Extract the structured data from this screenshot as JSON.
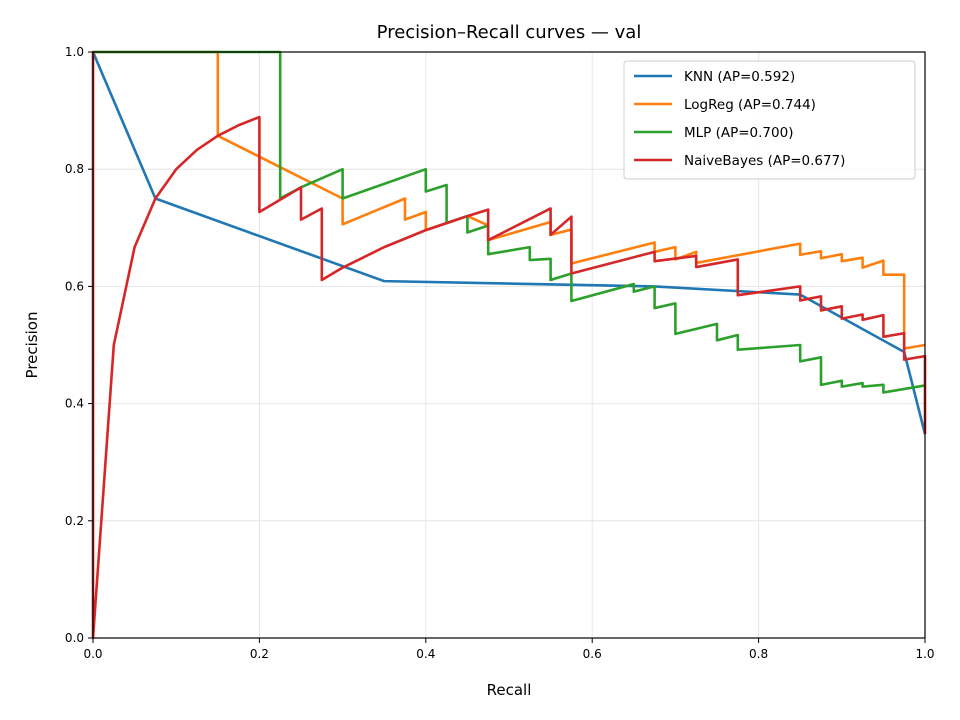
{
  "chart_data": {
    "type": "line",
    "title": "Precision–Recall curves — val",
    "xlabel": "Recall",
    "ylabel": "Precision",
    "xlim": [
      0,
      1
    ],
    "ylim": [
      0,
      1
    ],
    "xticks": [
      "0.0",
      "0.2",
      "0.4",
      "0.6",
      "0.8",
      "1.0"
    ],
    "yticks": [
      "0.0",
      "0.2",
      "0.4",
      "0.6",
      "0.8",
      "1.0"
    ],
    "grid": true,
    "legend_position": "upper-right",
    "series": [
      {
        "name": "KNN (AP=0.592)",
        "color": "#1f77b4",
        "x": [
          0,
          0.075,
          0.35,
          0.675,
          0.85,
          0.975,
          1.0
        ],
        "y": [
          1.0,
          0.75,
          0.609,
          0.6,
          0.586,
          0.488,
          0.348
        ]
      },
      {
        "name": "LogReg (AP=0.744)",
        "color": "#ff7f0e",
        "x": [
          0,
          0.15,
          0.15,
          0.15,
          0.3,
          0.3,
          0.375,
          0.375,
          0.4,
          0.4,
          0.45,
          0.475,
          0.475,
          0.55,
          0.55,
          0.575,
          0.575,
          0.675,
          0.675,
          0.7,
          0.7,
          0.725,
          0.725,
          0.85,
          0.85,
          0.875,
          0.875,
          0.9,
          0.9,
          0.925,
          0.925,
          0.95,
          0.95,
          0.975,
          0.975,
          1.0
        ],
        "y": [
          1.0,
          1.0,
          0.857,
          0.857,
          0.75,
          0.706,
          0.75,
          0.714,
          0.727,
          0.696,
          0.72,
          0.704,
          0.679,
          0.71,
          0.688,
          0.697,
          0.639,
          0.675,
          0.659,
          0.667,
          0.646,
          0.659,
          0.64,
          0.673,
          0.654,
          0.66,
          0.648,
          0.655,
          0.643,
          0.649,
          0.632,
          0.644,
          0.62,
          0.62,
          0.494,
          0.5
        ]
      },
      {
        "name": "MLP (AP=0.700)",
        "color": "#2ca02c",
        "x": [
          0,
          0.225,
          0.225,
          0.25,
          0.25,
          0.3,
          0.3,
          0.4,
          0.4,
          0.425,
          0.425,
          0.45,
          0.45,
          0.475,
          0.475,
          0.525,
          0.525,
          0.55,
          0.55,
          0.575,
          0.575,
          0.65,
          0.65,
          0.675,
          0.675,
          0.7,
          0.7,
          0.75,
          0.75,
          0.775,
          0.775,
          0.85,
          0.85,
          0.875,
          0.875,
          0.9,
          0.9,
          0.925,
          0.925,
          0.95,
          0.95,
          1.0
        ],
        "y": [
          1.0,
          1.0,
          0.75,
          0.769,
          0.769,
          0.8,
          0.75,
          0.8,
          0.762,
          0.773,
          0.708,
          0.72,
          0.692,
          0.704,
          0.655,
          0.667,
          0.645,
          0.647,
          0.611,
          0.622,
          0.575,
          0.604,
          0.591,
          0.6,
          0.563,
          0.571,
          0.519,
          0.536,
          0.508,
          0.517,
          0.492,
          0.5,
          0.472,
          0.479,
          0.432,
          0.439,
          0.429,
          0.435,
          0.429,
          0.432,
          0.419,
          0.431
        ]
      },
      {
        "name": "NaiveBayes (AP=0.677)",
        "color": "#d62728",
        "x": [
          0,
          0,
          0,
          0.025,
          0.05,
          0.075,
          0.1,
          0.125,
          0.15,
          0.175,
          0.2,
          0.2,
          0.25,
          0.25,
          0.275,
          0.275,
          0.3,
          0.35,
          0.4,
          0.425,
          0.45,
          0.475,
          0.475,
          0.55,
          0.55,
          0.575,
          0.575,
          0.675,
          0.675,
          0.725,
          0.725,
          0.775,
          0.775,
          0.85,
          0.85,
          0.875,
          0.875,
          0.9,
          0.9,
          0.925,
          0.925,
          0.95,
          0.95,
          0.975,
          0.975,
          1.0,
          1.0
        ],
        "y": [
          0,
          1.0,
          0,
          0.5,
          0.667,
          0.75,
          0.8,
          0.833,
          0.857,
          0.875,
          0.889,
          0.727,
          0.769,
          0.714,
          0.733,
          0.611,
          0.632,
          0.667,
          0.696,
          0.708,
          0.72,
          0.731,
          0.679,
          0.733,
          0.688,
          0.719,
          0.622,
          0.659,
          0.643,
          0.652,
          0.633,
          0.646,
          0.585,
          0.6,
          0.576,
          0.583,
          0.559,
          0.566,
          0.545,
          0.552,
          0.543,
          0.551,
          0.514,
          0.52,
          0.475,
          0.481,
          0.348
        ]
      }
    ]
  }
}
